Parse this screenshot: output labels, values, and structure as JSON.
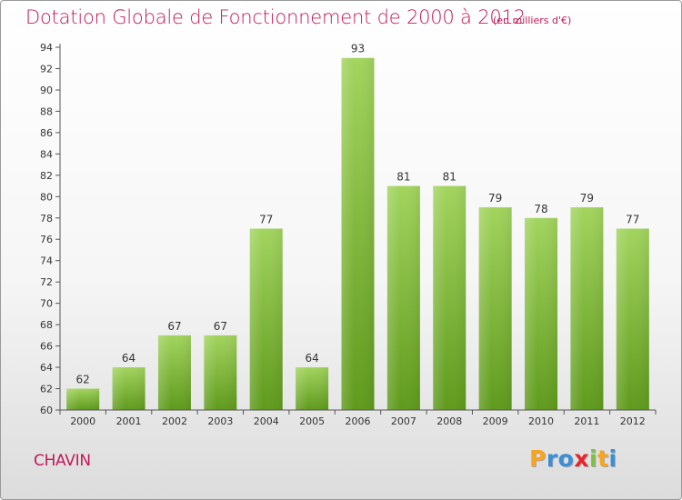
{
  "chart_data": {
    "type": "bar",
    "title": "Dotation Globale de Fonctionnement de 2000 à 2012",
    "unit_note": "(en milliers d'€)",
    "categories": [
      "2000",
      "2001",
      "2002",
      "2003",
      "2004",
      "2005",
      "2006",
      "2007",
      "2008",
      "2009",
      "2010",
      "2011",
      "2012"
    ],
    "values": [
      62,
      64,
      67,
      67,
      77,
      64,
      93,
      81,
      81,
      79,
      78,
      79,
      77
    ],
    "value_labels": [
      "62",
      "64",
      "67",
      "67",
      "77",
      "64",
      "93",
      "81",
      "81",
      "79",
      "78",
      "79",
      "77"
    ],
    "y_ticks": [
      "60",
      "62",
      "64",
      "66",
      "68",
      "70",
      "72",
      "74",
      "76",
      "78",
      "80",
      "82",
      "84",
      "86",
      "88",
      "90",
      "92",
      "94"
    ],
    "ylim": [
      60,
      94
    ],
    "xlabel": "",
    "ylabel": "",
    "grid": false,
    "bar_color_top": "#a2d45e",
    "bar_color_bottom": "#5f9a1c"
  },
  "commune": "CHAVIN",
  "logo": {
    "letters": [
      "P",
      "r",
      "o",
      "x",
      "i",
      "t",
      "i"
    ],
    "colors": [
      "#f7a51c",
      "#3b8fd6",
      "#3b8fd6",
      "#e8242b",
      "#7cc242",
      "#f7a51c",
      "#3b8fd6"
    ]
  }
}
